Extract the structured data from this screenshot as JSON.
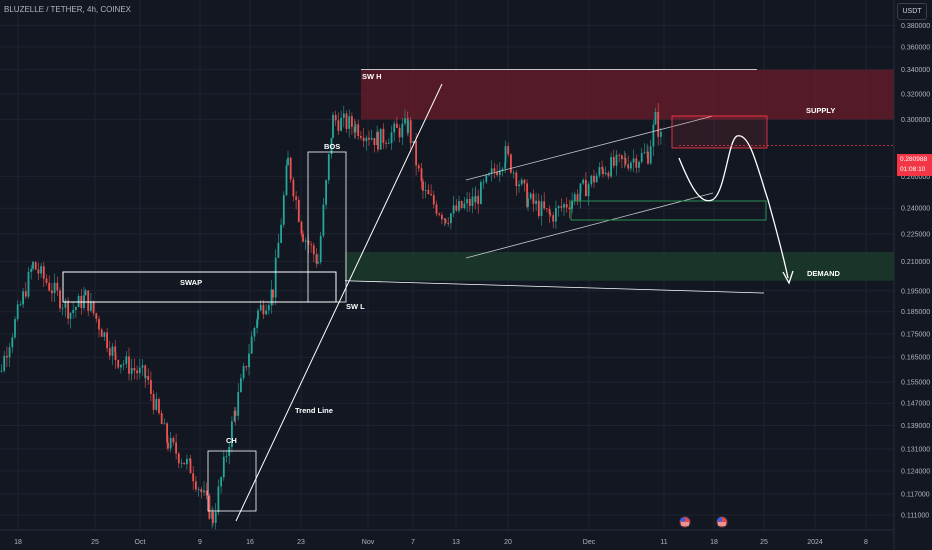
{
  "header": {
    "symbol": "BLUZELLE / TETHER, 4h, COINEX",
    "currency": "USDT"
  },
  "current_price": {
    "value": "0.280988",
    "countdown": "01:08:10",
    "color": "#f23645"
  },
  "colors": {
    "background": "#131722",
    "grid": "#1f2330",
    "up_candle": "#26a69a",
    "down_candle": "#ef5350",
    "supply_zone": "#6b1c2b",
    "demand_zone": "#1b3a2a",
    "annotation": "#ffffff"
  },
  "annotations": {
    "swh": "SW H",
    "bos": "BOS",
    "swap": "SWAP",
    "swl": "SW L",
    "ch": "CH",
    "trend_line": "Trend Line",
    "supply": "SUPPLY",
    "demand": "DEMAND"
  },
  "event_icons": [
    "us-flag-icon",
    "us-flag-icon"
  ],
  "chart_data": {
    "type": "candlestick",
    "title": "BLUZELLE / TETHER, 4h, COINEX",
    "y_scale": "log",
    "ylim": [
      0.108,
      0.39
    ],
    "y_ticks": [
      "0.380000",
      "0.360000",
      "0.340000",
      "0.320000",
      "0.300000",
      "0.280988",
      "0.260000",
      "0.240000",
      "0.225000",
      "0.210000",
      "0.195000",
      "0.185000",
      "0.175000",
      "0.165000",
      "0.155000",
      "0.147000",
      "0.139000",
      "0.131000",
      "0.124000",
      "0.117000",
      "0.111000"
    ],
    "x_ticks": [
      "18",
      "25",
      "Oct",
      "9",
      "16",
      "23",
      "Nov",
      "7",
      "13",
      "20",
      "Dec",
      "11",
      "18",
      "25",
      "2024",
      "8"
    ],
    "grid": true,
    "price_path_waypoints": [
      {
        "date": "Sep 14",
        "price": 0.145
      },
      {
        "date": "Sep 20",
        "price": 0.208
      },
      {
        "date": "Sep 25",
        "price": 0.185
      },
      {
        "date": "Sep 27",
        "price": 0.192
      },
      {
        "date": "Oct 1",
        "price": 0.165
      },
      {
        "date": "Oct 5",
        "price": 0.157
      },
      {
        "date": "Oct 8",
        "price": 0.133
      },
      {
        "date": "Oct 11",
        "price": 0.125
      },
      {
        "date": "Oct 14",
        "price": 0.11
      },
      {
        "date": "Oct 17",
        "price": 0.145
      },
      {
        "date": "Oct 20",
        "price": 0.185
      },
      {
        "date": "Oct 22",
        "price": 0.195
      },
      {
        "date": "Oct 24",
        "price": 0.27
      },
      {
        "date": "Oct 26",
        "price": 0.225
      },
      {
        "date": "Oct 28",
        "price": 0.21
      },
      {
        "date": "Oct 30",
        "price": 0.3
      },
      {
        "date": "Nov 2",
        "price": 0.295
      },
      {
        "date": "Nov 5",
        "price": 0.285
      },
      {
        "date": "Nov 9",
        "price": 0.295
      },
      {
        "date": "Nov 11",
        "price": 0.25
      },
      {
        "date": "Nov 14",
        "price": 0.235
      },
      {
        "date": "Nov 18",
        "price": 0.245
      },
      {
        "date": "Nov 22",
        "price": 0.275
      },
      {
        "date": "Nov 25",
        "price": 0.245
      },
      {
        "date": "Nov 28",
        "price": 0.235
      },
      {
        "date": "Dec 2",
        "price": 0.25
      },
      {
        "date": "Dec 5",
        "price": 0.265
      },
      {
        "date": "Dec 8",
        "price": 0.27
      },
      {
        "date": "Dec 11",
        "price": 0.275
      },
      {
        "date": "Dec 12",
        "price": 0.3
      },
      {
        "date": "Dec 13",
        "price": 0.281
      }
    ],
    "zones": [
      {
        "name": "SUPPLY",
        "from": 0.3,
        "to": 0.34,
        "start": "Oct 31",
        "end": "open"
      },
      {
        "name": "DEMAND",
        "from": 0.2,
        "to": 0.215,
        "start": "Oct 28",
        "end": "open"
      },
      {
        "name": "SWAP",
        "from": 0.195,
        "to": 0.215,
        "start": "Sep 19",
        "end": "Oct 28"
      },
      {
        "name": "CH",
        "from": 0.11,
        "to": 0.132,
        "start": "Oct 9",
        "end": "Oct 14"
      },
      {
        "name": "BOS",
        "from": 0.2,
        "to": 0.295,
        "start": "Oct 24",
        "end": "Oct 28"
      }
    ],
    "levels": {
      "SW H": 0.34,
      "SW L": 0.2
    },
    "projection": "price rises to ~0.30 then drops to DEMAND zone"
  }
}
